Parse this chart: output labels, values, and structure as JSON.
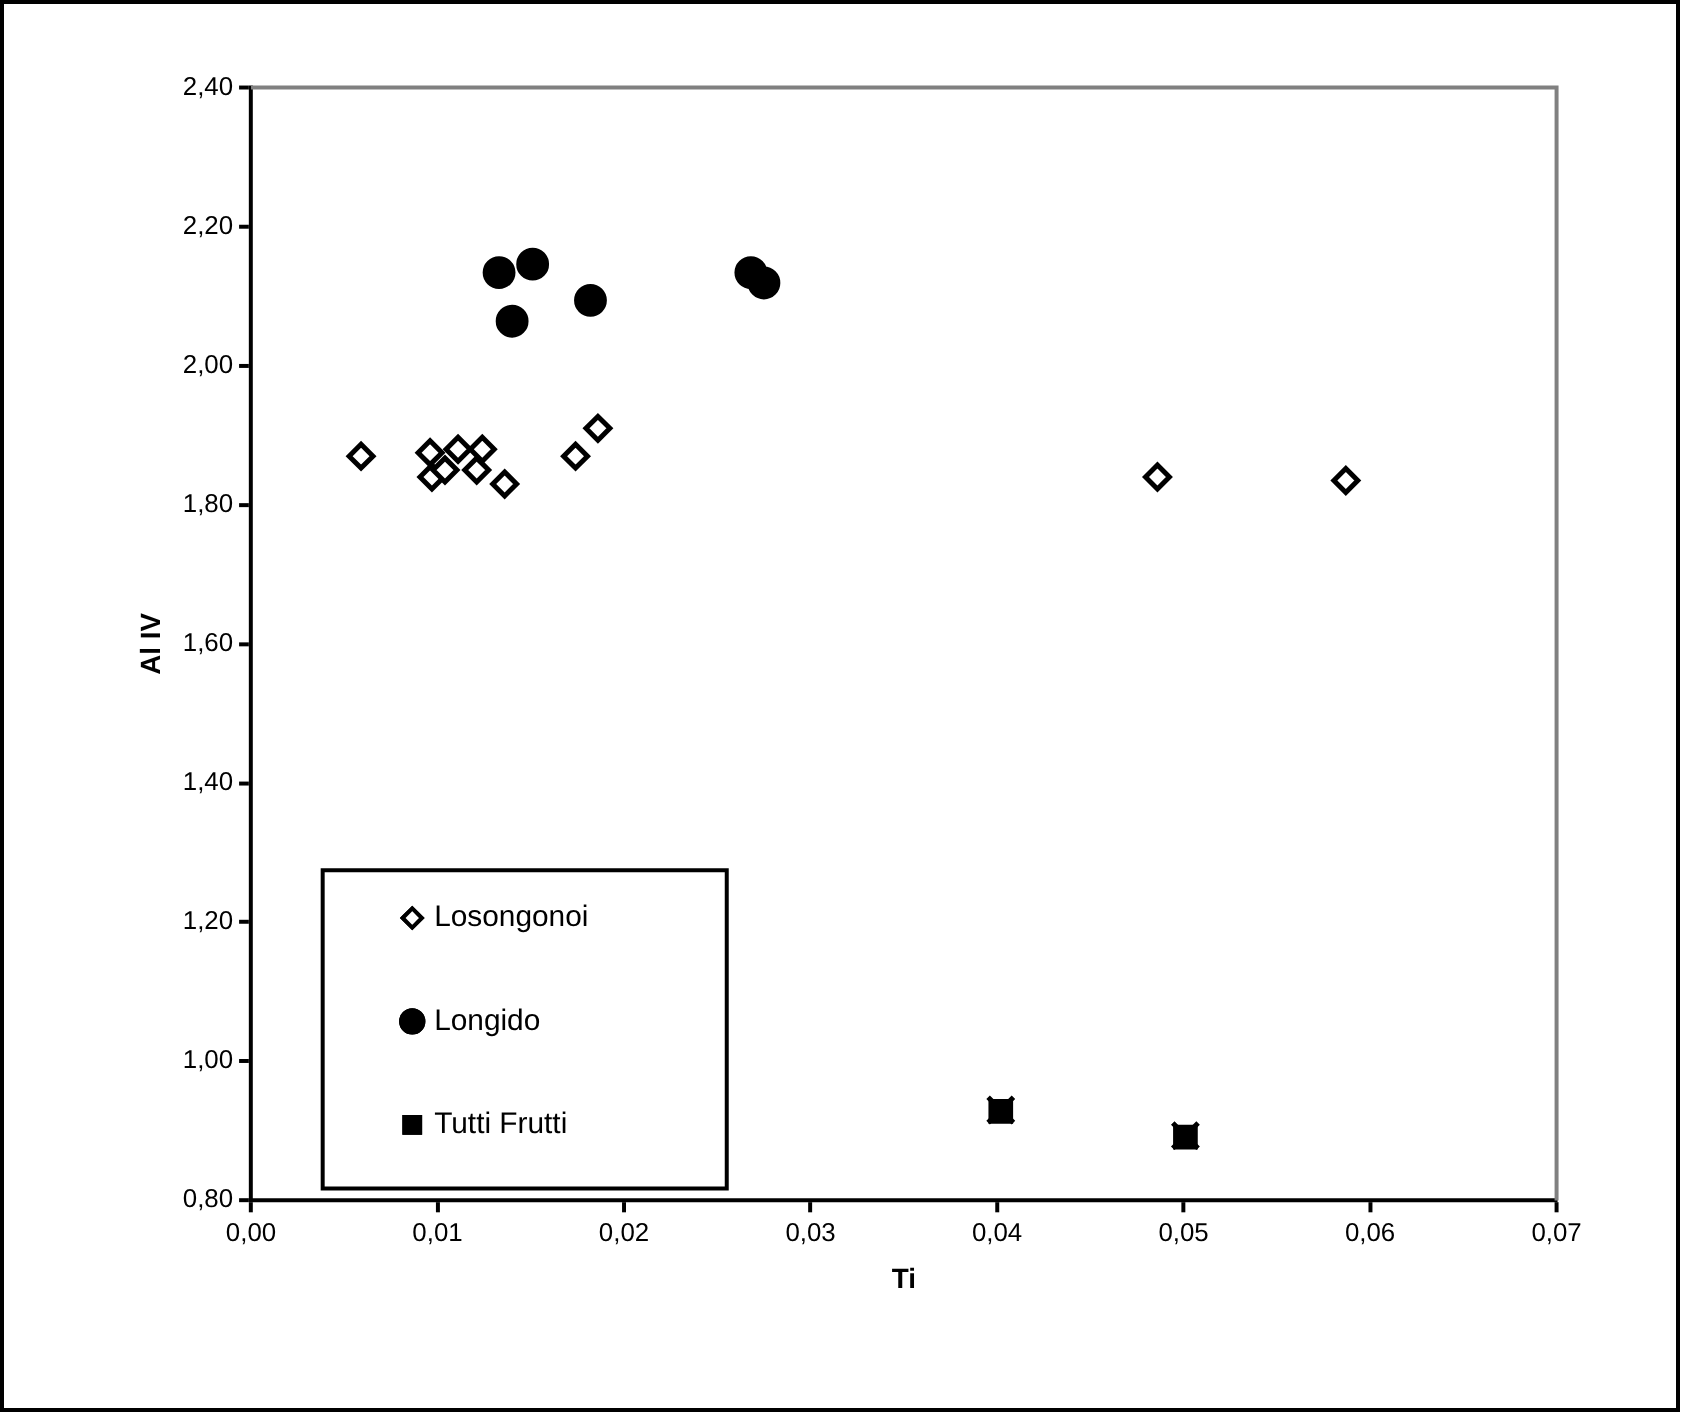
{
  "chart_data": {
    "type": "scatter",
    "xlabel": "Ti",
    "ylabel": "Al IV",
    "xlim": [
      0,
      0.07
    ],
    "ylim": [
      0.8,
      2.4
    ],
    "xticks": [
      {
        "value": 0,
        "label": "0,00"
      },
      {
        "value": 0.01,
        "label": "0,01"
      },
      {
        "value": 0.02,
        "label": "0,02"
      },
      {
        "value": 0.03,
        "label": "0,03"
      },
      {
        "value": 0.04,
        "label": "0,04"
      },
      {
        "value": 0.05,
        "label": "0,05"
      },
      {
        "value": 0.06,
        "label": "0,06"
      },
      {
        "value": 0.07,
        "label": "0,07"
      }
    ],
    "yticks": [
      {
        "value": 0.8,
        "label": "0,80"
      },
      {
        "value": 1,
        "label": "1,00"
      },
      {
        "value": 1.2,
        "label": "1,20"
      },
      {
        "value": 1.4,
        "label": "1,40"
      },
      {
        "value": 1.6,
        "label": "1,60"
      },
      {
        "value": 1.8,
        "label": "1,80"
      },
      {
        "value": 2,
        "label": "2,00"
      },
      {
        "value": 2.2,
        "label": "2,20"
      },
      {
        "value": 2.4,
        "label": "2,40"
      }
    ],
    "legend": "bottom left",
    "series": [
      {
        "name": "Losongonoi",
        "color": "#000000",
        "marker": "diamond",
        "x": [
          0.0059,
          0.0096,
          0.0097,
          0.0104,
          0.0111,
          0.0124,
          0.0121,
          0.0136,
          0.0174,
          0.0186,
          0.0486,
          0.0587
        ],
        "values": [
          1.87,
          1.875,
          1.84,
          1.85,
          1.88,
          1.88,
          1.85,
          1.83,
          1.87,
          1.91,
          1.84,
          1.835
        ]
      },
      {
        "name": "Longido",
        "color": "#000000",
        "marker": "circle",
        "x": [
          0.0133,
          0.0151,
          0.014,
          0.0182,
          0.0268,
          0.0275
        ],
        "values": [
          2.134,
          2.146,
          2.064,
          2.094,
          2.134,
          2.119
        ]
      },
      {
        "name": "Tutti Frutti",
        "color": "#000000",
        "marker": "square",
        "x": [
          0.0402,
          0.0501
        ],
        "values": [
          0.928,
          0.891
        ]
      },
      {
        "color": "#000000",
        "marker": "cross",
        "x": [
          0.0402,
          0.0501
        ],
        "values": [
          0.93,
          0.893
        ]
      }
    ]
  }
}
